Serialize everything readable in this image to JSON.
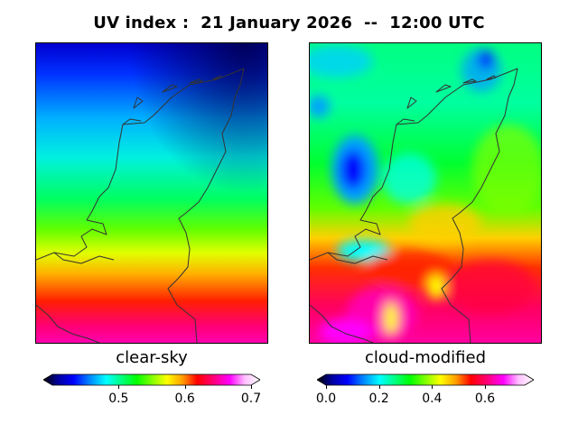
{
  "title": "UV index :  21 January 2026  --  12:00 UTC",
  "panels": {
    "left": {
      "label": "clear-sky",
      "colorbar": {
        "ticks": [
          "0.5",
          "0.6",
          "0.7"
        ],
        "tick_values": [
          0.5,
          0.6,
          0.7
        ],
        "min": 0.4,
        "max": 0.7
      }
    },
    "right": {
      "label": "cloud-modified",
      "colorbar": {
        "ticks": [
          "0.0",
          "0.2",
          "0.4",
          "0.6"
        ],
        "tick_values": [
          0.0,
          0.2,
          0.4,
          0.6
        ],
        "min": 0.0,
        "max": 0.75
      }
    }
  },
  "colors": {
    "colormap": [
      "#000000",
      "#0000a0",
      "#0000ff",
      "#0080ff",
      "#00ffff",
      "#00ff80",
      "#00ff00",
      "#80ff00",
      "#ffff00",
      "#ffa000",
      "#ff0000",
      "#ff0080",
      "#ff00ff",
      "#ffc0ff",
      "#ffffff"
    ],
    "coastline": "#333333"
  }
}
